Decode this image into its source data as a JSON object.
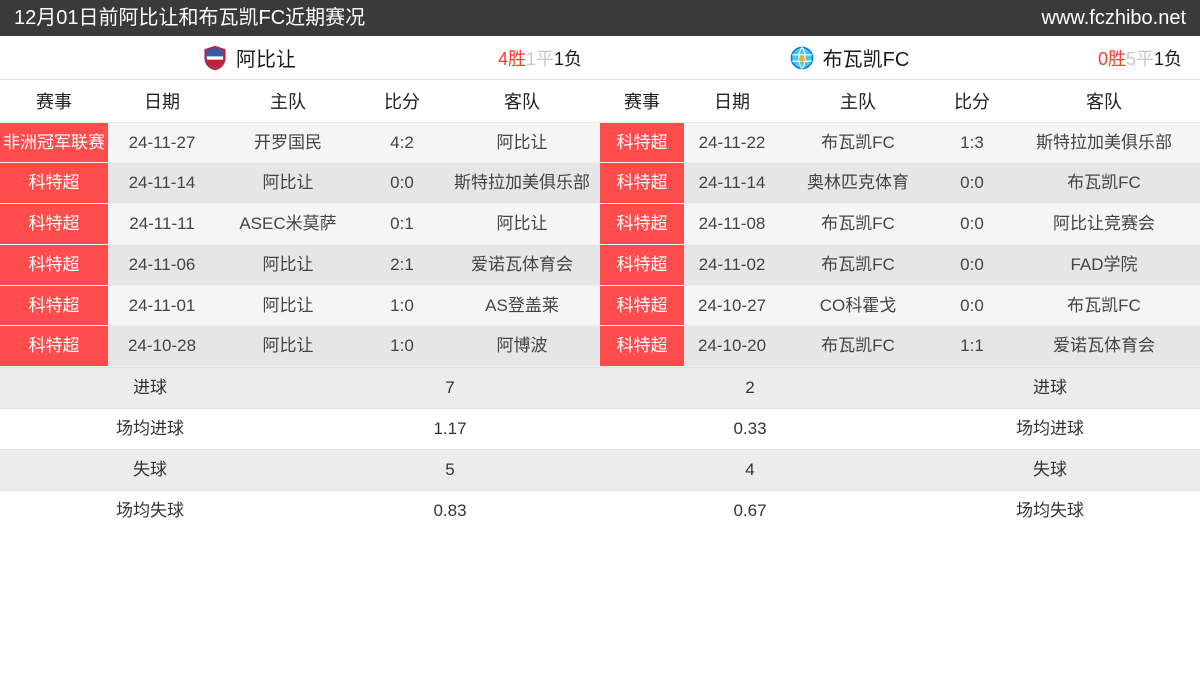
{
  "header": {
    "title": "12月01日前阿比让和布瓦凯FC近期赛况",
    "site": "www.fczhibo.net"
  },
  "colors": {
    "header_bg": "#3a3a3a",
    "comp_bg": "#ff4d4d",
    "win": "#ff3b30",
    "draw": "#c9c9c9",
    "loss": "#1a1a1a",
    "row_odd": "#f5f5f5",
    "row_even": "#e6e6e6"
  },
  "left": {
    "team": "阿比让",
    "logo_type": "shield",
    "record": {
      "w": "4胜",
      "d": "1平",
      "l": "1负"
    },
    "columns": [
      "赛事",
      "日期",
      "主队",
      "比分",
      "客队"
    ],
    "rows": [
      {
        "comp": "非洲冠军联赛",
        "date": "24-11-27",
        "home": "开罗国民",
        "score": "4:2",
        "away": "阿比让"
      },
      {
        "comp": "科特超",
        "date": "24-11-14",
        "home": "阿比让",
        "score": "0:0",
        "away": "斯特拉加美俱乐部"
      },
      {
        "comp": "科特超",
        "date": "24-11-11",
        "home": "ASEC米莫萨",
        "score": "0:1",
        "away": "阿比让"
      },
      {
        "comp": "科特超",
        "date": "24-11-06",
        "home": "阿比让",
        "score": "2:1",
        "away": "爱诺瓦体育会"
      },
      {
        "comp": "科特超",
        "date": "24-11-01",
        "home": "阿比让",
        "score": "1:0",
        "away": "AS登盖莱"
      },
      {
        "comp": "科特超",
        "date": "24-10-28",
        "home": "阿比让",
        "score": "1:0",
        "away": "阿博波"
      }
    ]
  },
  "right": {
    "team": "布瓦凯FC",
    "logo_type": "globe",
    "record": {
      "w": "0胜",
      "d": "5平",
      "l": "1负"
    },
    "columns": [
      "赛事",
      "日期",
      "主队",
      "比分",
      "客队"
    ],
    "rows": [
      {
        "comp": "科特超",
        "date": "24-11-22",
        "home": "布瓦凯FC",
        "score": "1:3",
        "away": "斯特拉加美俱乐部"
      },
      {
        "comp": "科特超",
        "date": "24-11-14",
        "home": "奥林匹克体育",
        "score": "0:0",
        "away": "布瓦凯FC"
      },
      {
        "comp": "科特超",
        "date": "24-11-08",
        "home": "布瓦凯FC",
        "score": "0:0",
        "away": "阿比让竞赛会"
      },
      {
        "comp": "科特超",
        "date": "24-11-02",
        "home": "布瓦凯FC",
        "score": "0:0",
        "away": "FAD学院"
      },
      {
        "comp": "科特超",
        "date": "24-10-27",
        "home": "CO科霍戈",
        "score": "0:0",
        "away": "布瓦凯FC"
      },
      {
        "comp": "科特超",
        "date": "24-10-20",
        "home": "布瓦凯FC",
        "score": "1:1",
        "away": "爱诺瓦体育会"
      }
    ]
  },
  "stats": {
    "rows": [
      {
        "llabel": "进球",
        "lval": "7",
        "rval": "2",
        "rlabel": "进球"
      },
      {
        "llabel": "场均进球",
        "lval": "1.17",
        "rval": "0.33",
        "rlabel": "场均进球"
      },
      {
        "llabel": "失球",
        "lval": "5",
        "rval": "4",
        "rlabel": "失球"
      },
      {
        "llabel": "场均失球",
        "lval": "0.83",
        "rval": "0.67",
        "rlabel": "场均失球"
      }
    ]
  }
}
